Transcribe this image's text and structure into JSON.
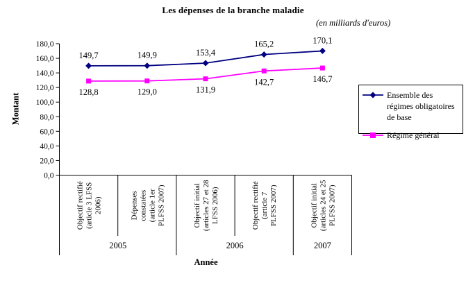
{
  "title": "Les dépenses de la branche maladie",
  "subtitle": "(en milliards d'euros)",
  "chart_data": {
    "type": "line",
    "title": "Les dépenses de la branche maladie",
    "subtitle": "(en milliards d'euros)",
    "grid": false,
    "legend_position": "right",
    "y_axis": {
      "title": "Montant",
      "min": 0,
      "max": 180,
      "tick_labels": [
        "180,0",
        "160,0",
        "140,0",
        "120,0",
        "100,0",
        "80,0",
        "60,0",
        "40,0",
        "20,0",
        "0,0"
      ]
    },
    "x_axis": {
      "title": "Année"
    },
    "categories": [
      {
        "lines": [
          "Objectif rectifié",
          "(article 3 LFSS",
          "2006)"
        ]
      },
      {
        "lines": [
          "Dépenses",
          "constatées",
          "(article 1er",
          "PLFSS 2007)"
        ]
      },
      {
        "lines": [
          "Objectif initial",
          "(articles 27 et 28",
          "LFSS 2006)"
        ]
      },
      {
        "lines": [
          "Objectif rectifié",
          "(article 7",
          "PLFSS 2007)"
        ]
      },
      {
        "lines": [
          "Objectif initial",
          "(articles 24 et 25",
          "PLFSS 2007)"
        ]
      }
    ],
    "year_groups": [
      {
        "label": "2005",
        "from": 0,
        "to": 1
      },
      {
        "label": "2006",
        "from": 2,
        "to": 3
      },
      {
        "label": "2007",
        "from": 4,
        "to": 4
      }
    ],
    "series": [
      {
        "name": "Ensemble des régimes obligatoires de base",
        "color": "#000080",
        "marker": "diamond",
        "values": [
          149.7,
          149.9,
          153.4,
          165.2,
          170.1
        ],
        "value_labels": [
          "149,7",
          "149,9",
          "153,4",
          "165,2",
          "170,1"
        ]
      },
      {
        "name": "Régime général",
        "color": "#FF00FF",
        "marker": "square",
        "values": [
          128.8,
          129.0,
          131.9,
          142.7,
          146.7
        ],
        "value_labels": [
          "128,8",
          "129,0",
          "131,9",
          "142,7",
          "146,7"
        ]
      }
    ]
  }
}
